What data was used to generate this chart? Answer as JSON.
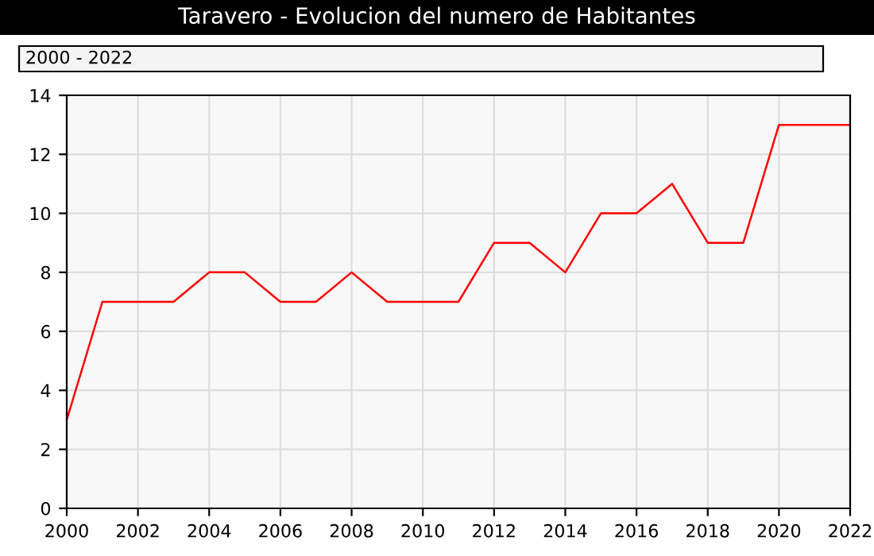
{
  "chart_data": {
    "type": "line",
    "title": "Taravero - Evolucion del numero de Habitantes",
    "subtitle": "2000 - 2022",
    "x": [
      2000,
      2001,
      2002,
      2003,
      2004,
      2005,
      2006,
      2007,
      2008,
      2009,
      2010,
      2011,
      2012,
      2013,
      2014,
      2015,
      2016,
      2017,
      2018,
      2019,
      2020,
      2021,
      2022
    ],
    "series": [
      {
        "color": "#ff0000",
        "values": [
          3,
          7,
          7,
          7,
          8,
          8,
          7,
          7,
          8,
          7,
          7,
          7,
          9,
          9,
          8,
          10,
          10,
          11,
          9,
          9,
          13,
          13,
          13
        ]
      }
    ],
    "xlim": [
      2000,
      2022
    ],
    "xticks": [
      2000,
      2002,
      2004,
      2006,
      2008,
      2010,
      2012,
      2014,
      2016,
      2018,
      2020,
      2022
    ],
    "ylim": [
      0,
      14
    ],
    "yticks": [
      0,
      2,
      4,
      6,
      8,
      10,
      12,
      14
    ],
    "grid": true,
    "marker": "none",
    "line_style": "solid"
  }
}
